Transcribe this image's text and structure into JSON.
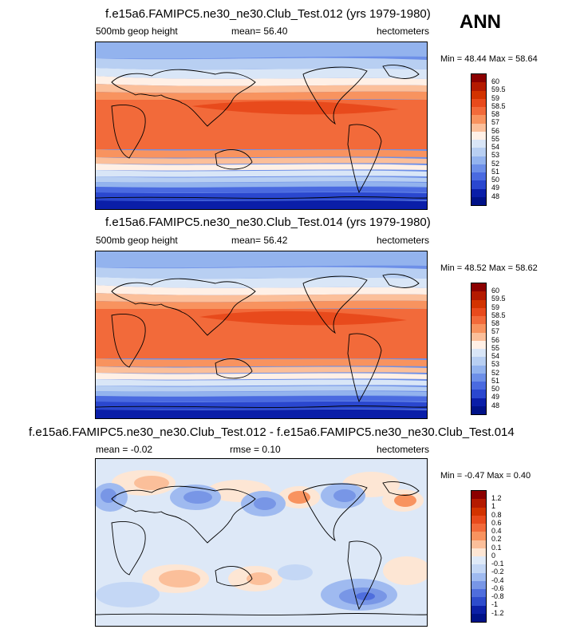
{
  "season": "ANN",
  "panels": [
    {
      "title": "f.e15a6.FAMIPC5.ne30_ne30.Club_Test.012 (yrs 1979-1980)",
      "left": "500mb geop height",
      "center": "mean=  56.40",
      "right": "hectometers",
      "minmax": "Min =  48.44 Max =  58.64",
      "levels": [
        "60",
        "59.5",
        "59",
        "58.5",
        "58",
        "57",
        "56",
        "55",
        "54",
        "53",
        "52",
        "51",
        "50",
        "49",
        "48"
      ]
    },
    {
      "title": "f.e15a6.FAMIPC5.ne30_ne30.Club_Test.014 (yrs 1979-1980)",
      "left": "500mb geop height",
      "center": "mean=  56.42",
      "right": "hectometers",
      "minmax": "Min =  48.52 Max =  58.62",
      "levels": [
        "60",
        "59.5",
        "59",
        "58.5",
        "58",
        "57",
        "56",
        "55",
        "54",
        "53",
        "52",
        "51",
        "50",
        "49",
        "48"
      ]
    },
    {
      "title": "f.e15a6.FAMIPC5.ne30_ne30.Club_Test.012 - f.e15a6.FAMIPC5.ne30_ne30.Club_Test.014",
      "left": "mean =  -0.02",
      "center": "rmse =  0.10",
      "right": "hectometers",
      "minmax": "Min = -0.47 Max =  0.40",
      "levels": [
        "1.2",
        "1",
        "0.8",
        "0.6",
        "0.4",
        "0.2",
        "0.1",
        "0",
        "-0.1",
        "-0.2",
        "-0.4",
        "-0.6",
        "-0.8",
        "-1",
        "-1.2"
      ]
    }
  ],
  "colors": {
    "field_scale": [
      "#8b0000",
      "#b41a00",
      "#d23300",
      "#e84a1c",
      "#f26a3a",
      "#f8935f",
      "#fbbf9a",
      "#fff0e6",
      "#d9e6f7",
      "#b8cff2",
      "#93b3ee",
      "#6d8fe8",
      "#4a6ae0",
      "#2a47cf",
      "#0a1ea8",
      "#001288"
    ],
    "diff_scale": [
      "#8b0000",
      "#b41a00",
      "#d23300",
      "#e84a1c",
      "#f26a3a",
      "#f8935f",
      "#fbbf9a",
      "#fde6d4",
      "#dfeaf8",
      "#c4d7f5",
      "#9fbaf0",
      "#7896e6",
      "#4f6edd",
      "#2e4ccc",
      "#0c20a6",
      "#001288"
    ],
    "diff_background": "#dde8f7"
  }
}
